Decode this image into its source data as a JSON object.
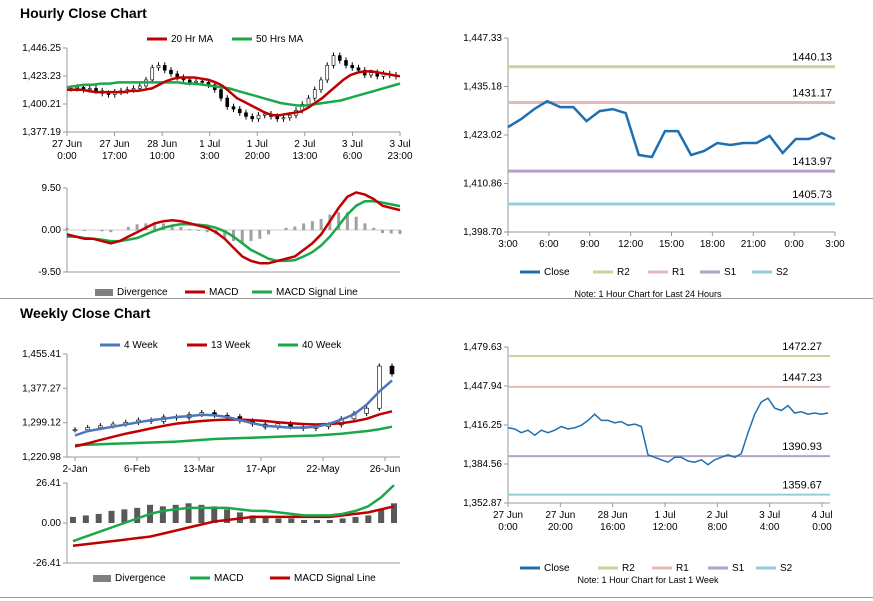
{
  "titles": {
    "hourly": "Hourly Close Chart",
    "weekly": "Weekly Close Chart"
  },
  "colors": {
    "red": "#c00000",
    "green": "#1aa84a",
    "blue": "#4a77be",
    "dark_blue": "#1f6fb0",
    "gray": "#808080",
    "r2": "#c3d69b",
    "r1": "#e6b9b8",
    "s1": "#b3a2c7",
    "s2": "#93cddd"
  },
  "chart_data": [
    {
      "id": "hourly_price",
      "type": "candlestick",
      "legend": [
        "20 Hr MA",
        "50 Hrs MA"
      ],
      "ylim": [
        1377.19,
        1446.25
      ],
      "yticks": [
        "1,446.25",
        "1,423.23",
        "1,400.21",
        "1,377.19"
      ],
      "xticks": [
        "27 Jun\n0:00",
        "27 Jun\n17:00",
        "28 Jun\n10:00",
        "1 Jul\n3:00",
        "1 Jul\n20:00",
        "2 Jul\n13:00",
        "3 Jul\n6:00",
        "3 Jul\n23:00"
      ],
      "close": [
        1413,
        1414,
        1412,
        1413,
        1411,
        1409,
        1408,
        1410,
        1411,
        1412,
        1413,
        1415,
        1420,
        1430,
        1432,
        1428,
        1425,
        1422,
        1420,
        1418,
        1419,
        1418,
        1416,
        1412,
        1405,
        1398,
        1396,
        1393,
        1390,
        1388,
        1391,
        1392,
        1390,
        1388,
        1389,
        1391,
        1395,
        1400,
        1405,
        1412,
        1420,
        1432,
        1440,
        1436,
        1432,
        1430,
        1428,
        1424,
        1426,
        1423,
        1425,
        1424,
        1423
      ],
      "ma20": [
        1412,
        1412,
        1412,
        1411,
        1410,
        1410,
        1410,
        1410,
        1410,
        1411,
        1411,
        1412,
        1413,
        1416,
        1419,
        1421,
        1422,
        1422,
        1422,
        1421,
        1420,
        1418,
        1415,
        1410,
        1405,
        1402,
        1399,
        1396,
        1393,
        1391,
        1391,
        1392,
        1393,
        1394,
        1397,
        1401,
        1405,
        1410,
        1415,
        1420,
        1424,
        1426,
        1427,
        1427,
        1426,
        1425,
        1424,
        1423
      ],
      "ma50": [
        1414,
        1415,
        1416,
        1416,
        1417,
        1417,
        1418,
        1418,
        1418,
        1418,
        1418,
        1418,
        1418,
        1418,
        1417,
        1417,
        1416,
        1415,
        1414,
        1413,
        1411,
        1409,
        1407,
        1405,
        1403,
        1401,
        1400,
        1399,
        1399,
        1400,
        1401,
        1402,
        1403,
        1405,
        1407,
        1409,
        1411,
        1413,
        1415,
        1417
      ]
    },
    {
      "id": "hourly_macd",
      "type": "bar+line",
      "legend": [
        "Divergence",
        "MACD",
        "MACD Signal Line"
      ],
      "ylim": [
        -9.5,
        9.5
      ],
      "yticks": [
        "9.50",
        "0.00",
        "-9.50"
      ],
      "macd": [
        -1,
        -1.5,
        -2,
        -2,
        -2.5,
        -3,
        -2.5,
        -1.5,
        -0.5,
        0.5,
        1.5,
        2,
        2.2,
        2,
        1.5,
        1,
        0.5,
        -0.5,
        -2,
        -4,
        -6,
        -7,
        -7.5,
        -7.5,
        -7,
        -6.5,
        -6,
        -4.5,
        -3,
        -1,
        2,
        5,
        7.5,
        8.5,
        8,
        7,
        5.5,
        5,
        4.5
      ],
      "signal": [
        -1.5,
        -1.5,
        -1.8,
        -2,
        -2.2,
        -2.5,
        -2.5,
        -2.2,
        -1.8,
        -1,
        -0.2,
        0.5,
        1,
        1.3,
        1.3,
        1.2,
        1,
        0.5,
        -0.3,
        -1.5,
        -3,
        -4.5,
        -5.5,
        -6.5,
        -7,
        -7,
        -6.8,
        -6,
        -5,
        -3.5,
        -1.5,
        1,
        3.5,
        5.5,
        6.5,
        6.5,
        6.2,
        5.8,
        5.4
      ],
      "divergence": [
        0.5,
        0,
        -0.2,
        0,
        -0.3,
        -0.5,
        0,
        0.7,
        1.3,
        1.5,
        1.7,
        1.5,
        1.2,
        0.7,
        0.2,
        -0.2,
        -0.5,
        -1,
        -1.7,
        -2.5,
        -3,
        -2.5,
        -2,
        -1,
        0,
        0.5,
        0.8,
        1.5,
        2,
        2.5,
        3.5,
        4,
        4,
        3,
        1.5,
        0.5,
        -0.7,
        -0.8,
        -0.9
      ]
    },
    {
      "id": "hourly_24h",
      "type": "line",
      "legend": [
        "Close",
        "R2",
        "R1",
        "S1",
        "S2"
      ],
      "ylim": [
        1398.7,
        1447.33
      ],
      "yticks": [
        "1,447.33",
        "1,435.18",
        "1,423.02",
        "1,410.86",
        "1,398.70"
      ],
      "xticks": [
        "3:00",
        "6:00",
        "9:00",
        "12:00",
        "15:00",
        "18:00",
        "21:00",
        "0:00",
        "3:00"
      ],
      "close": [
        1425,
        1427,
        1429.5,
        1431.5,
        1430,
        1430,
        1426.5,
        1429,
        1429.5,
        1428.5,
        1418,
        1417.5,
        1424,
        1424,
        1418,
        1419,
        1421,
        1420.5,
        1421,
        1421,
        1422.8,
        1418.5,
        1422,
        1422,
        1423.5,
        1422
      ],
      "levels": {
        "R2": 1440.13,
        "R1": 1431.17,
        "S1": 1413.97,
        "S2": 1405.73
      },
      "level_labels": [
        "1440.13",
        "1431.17",
        "1413.97",
        "1405.73"
      ],
      "note": "Note: 1 Hour Chart for Last 24 Hours"
    },
    {
      "id": "weekly_price",
      "type": "candlestick",
      "legend": [
        "4 Week",
        "13 Week",
        "40 Week"
      ],
      "ylim": [
        1220.98,
        1455.41
      ],
      "yticks": [
        "1,455.41",
        "1,377.27",
        "1,299.12",
        "1,220.98"
      ],
      "xticks": [
        "2-Jan",
        "6-Feb",
        "13-Mar",
        "17-Apr",
        "22-May",
        "26-Jun"
      ],
      "close": [
        1283,
        1288,
        1292,
        1296,
        1300,
        1305,
        1302,
        1312,
        1310,
        1318,
        1322,
        1316,
        1313,
        1303,
        1296,
        1289,
        1297,
        1290,
        1286,
        1290,
        1294,
        1308,
        1320,
        1332,
        1428,
        1410
      ],
      "ma4": [
        1270,
        1280,
        1285,
        1290,
        1295,
        1300,
        1305,
        1308,
        1312,
        1314,
        1317,
        1316,
        1312,
        1305,
        1298,
        1292,
        1290,
        1288,
        1288,
        1290,
        1296,
        1306,
        1318,
        1340,
        1370,
        1395
      ],
      "ma13": [
        1245,
        1252,
        1260,
        1267,
        1274,
        1280,
        1286,
        1292,
        1297,
        1300,
        1303,
        1305,
        1306,
        1306,
        1305,
        1303,
        1300,
        1298,
        1296,
        1295,
        1296,
        1298,
        1302,
        1308,
        1318,
        1325
      ],
      "ma40": [
        1248,
        1249,
        1250,
        1251,
        1252,
        1253,
        1254,
        1255,
        1256,
        1258,
        1260,
        1262,
        1263,
        1264,
        1265,
        1266,
        1267,
        1268,
        1269,
        1270,
        1272,
        1274,
        1277,
        1280,
        1284,
        1290
      ]
    },
    {
      "id": "weekly_macd",
      "type": "bar+line",
      "legend": [
        "Divergence",
        "MACD",
        "MACD Signal Line"
      ],
      "ylim": [
        -26.41,
        26.41
      ],
      "yticks": [
        "26.41",
        "0.00",
        "-26.41"
      ],
      "macd": [
        -12,
        -9,
        -6,
        -3,
        0,
        3,
        6,
        8,
        9,
        10,
        10,
        10,
        10,
        9,
        8,
        8,
        7,
        6,
        5,
        5,
        5,
        6,
        8,
        11,
        17,
        25
      ],
      "signal": [
        -15,
        -14,
        -13,
        -12,
        -11,
        -10,
        -9,
        -7,
        -5,
        -3,
        -1,
        1,
        2,
        3,
        4,
        4,
        4,
        4,
        4,
        4,
        4,
        5,
        6,
        7,
        9,
        11
      ],
      "divergence": [
        4,
        5,
        6,
        8,
        9,
        10,
        12,
        11,
        12,
        13,
        12,
        11,
        9,
        7,
        5,
        4,
        3,
        3,
        2,
        2,
        2,
        3,
        4,
        5,
        9,
        13
      ]
    },
    {
      "id": "weekly_close",
      "type": "line",
      "legend": [
        "Close",
        "R2",
        "R1",
        "S1",
        "S2"
      ],
      "ylim": [
        1352.87,
        1479.63
      ],
      "yticks": [
        "1,479.63",
        "1,447.94",
        "1,416.25",
        "1,384.56",
        "1,352.87"
      ],
      "xticks": [
        "27 Jun\n0:00",
        "27 Jun\n20:00",
        "28 Jun\n16:00",
        "1 Jul\n12:00",
        "2 Jul\n8:00",
        "3 Jul\n4:00",
        "4 Jul\n0:00"
      ],
      "close": [
        1414,
        1413,
        1410,
        1412,
        1408,
        1412,
        1410,
        1412,
        1415,
        1413,
        1414,
        1416,
        1420,
        1425,
        1420,
        1420,
        1418,
        1419,
        1416,
        1417,
        1415,
        1392,
        1390,
        1388,
        1386,
        1390,
        1390,
        1387,
        1386,
        1388,
        1384,
        1388,
        1390,
        1392,
        1390,
        1393,
        1410,
        1425,
        1435,
        1438,
        1430,
        1428,
        1432,
        1426,
        1427,
        1425,
        1426,
        1425,
        1426
      ],
      "levels": {
        "R2": 1472.27,
        "R1": 1447.23,
        "S1": 1390.93,
        "S2": 1359.67
      },
      "level_labels": [
        "1472.27",
        "1447.23",
        "1390.93",
        "1359.67"
      ],
      "note": "Note: 1 Hour Chart for Last 1 Week"
    }
  ]
}
